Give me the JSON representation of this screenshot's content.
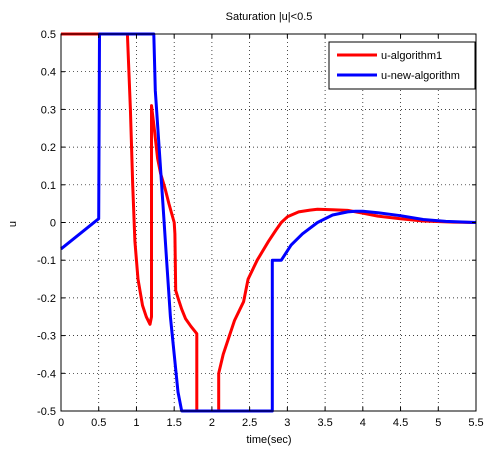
{
  "chart_data": {
    "type": "line",
    "title": "Saturation |u|<0.5",
    "xlabel": "time(sec)",
    "ylabel": "u",
    "xlim": [
      0,
      5.5
    ],
    "ylim": [
      -0.5,
      0.5
    ],
    "xticks": [
      0,
      0.5,
      1,
      1.5,
      2,
      2.5,
      3,
      3.5,
      4,
      4.5,
      5,
      5.5
    ],
    "xtick_labels": [
      "0",
      "0.5",
      "1",
      "1.5",
      "2",
      "2.5",
      "3",
      "3.5",
      "4",
      "4.5",
      "5",
      "5.5"
    ],
    "yticks": [
      -0.5,
      -0.4,
      -0.3,
      -0.2,
      -0.1,
      0,
      0.1,
      0.2,
      0.3,
      0.4,
      0.5
    ],
    "ytick_labels": [
      "-0.5",
      "-0.4",
      "-0.3",
      "-0.2",
      "-0.1",
      "0",
      "0.1",
      "0.2",
      "0.3",
      "0.4",
      "0.5"
    ],
    "grid": true,
    "legend_position": "top-right",
    "series": [
      {
        "name": "u-algorithm1",
        "color": "#ff0000",
        "points": [
          [
            0,
            0.5
          ],
          [
            0.88,
            0.5
          ],
          [
            0.92,
            0.3
          ],
          [
            0.95,
            0.1
          ],
          [
            0.98,
            -0.05
          ],
          [
            1.02,
            -0.15
          ],
          [
            1.08,
            -0.22
          ],
          [
            1.13,
            -0.25
          ],
          [
            1.18,
            -0.27
          ],
          [
            1.2,
            -0.25
          ],
          [
            1.2,
            0.31
          ],
          [
            1.23,
            0.26
          ],
          [
            1.28,
            0.17
          ],
          [
            1.32,
            0.13
          ],
          [
            1.38,
            0.09
          ],
          [
            1.43,
            0.05
          ],
          [
            1.5,
            0.0
          ],
          [
            1.51,
            -0.03
          ],
          [
            1.52,
            -0.18
          ],
          [
            1.55,
            -0.2
          ],
          [
            1.6,
            -0.23
          ],
          [
            1.65,
            -0.255
          ],
          [
            1.72,
            -0.275
          ],
          [
            1.8,
            -0.295
          ],
          [
            1.8,
            -0.5
          ],
          [
            2.09,
            -0.5
          ],
          [
            2.09,
            -0.4
          ],
          [
            2.15,
            -0.35
          ],
          [
            2.3,
            -0.26
          ],
          [
            2.42,
            -0.21
          ],
          [
            2.48,
            -0.15
          ],
          [
            2.6,
            -0.1
          ],
          [
            2.75,
            -0.05
          ],
          [
            2.85,
            -0.02
          ],
          [
            2.92,
            0.0
          ],
          [
            3.0,
            0.015
          ],
          [
            3.15,
            0.028
          ],
          [
            3.3,
            0.033
          ],
          [
            3.4,
            0.035
          ],
          [
            3.6,
            0.034
          ],
          [
            3.8,
            0.032
          ],
          [
            4.0,
            0.025
          ],
          [
            4.2,
            0.017
          ],
          [
            4.5,
            0.01
          ],
          [
            4.8,
            0.004
          ],
          [
            5.2,
            0.001
          ],
          [
            5.5,
            0.0
          ]
        ]
      },
      {
        "name": "u-new-algorithm",
        "color": "#0000ff",
        "points": [
          [
            0,
            -0.07
          ],
          [
            0.5,
            0.01
          ],
          [
            0.51,
            0.5
          ],
          [
            1.23,
            0.5
          ],
          [
            1.25,
            0.35
          ],
          [
            1.3,
            0.2
          ],
          [
            1.35,
            0.05
          ],
          [
            1.4,
            -0.1
          ],
          [
            1.45,
            -0.25
          ],
          [
            1.5,
            -0.35
          ],
          [
            1.55,
            -0.45
          ],
          [
            1.6,
            -0.5
          ],
          [
            2.8,
            -0.5
          ],
          [
            2.8,
            -0.1
          ],
          [
            2.92,
            -0.1
          ],
          [
            3.05,
            -0.06
          ],
          [
            3.2,
            -0.03
          ],
          [
            3.4,
            0.0
          ],
          [
            3.6,
            0.02
          ],
          [
            3.8,
            0.028
          ],
          [
            3.9,
            0.03
          ],
          [
            4.0,
            0.03
          ],
          [
            4.2,
            0.026
          ],
          [
            4.5,
            0.018
          ],
          [
            4.8,
            0.008
          ],
          [
            5.1,
            0.003
          ],
          [
            5.5,
            0.0
          ]
        ]
      }
    ]
  }
}
